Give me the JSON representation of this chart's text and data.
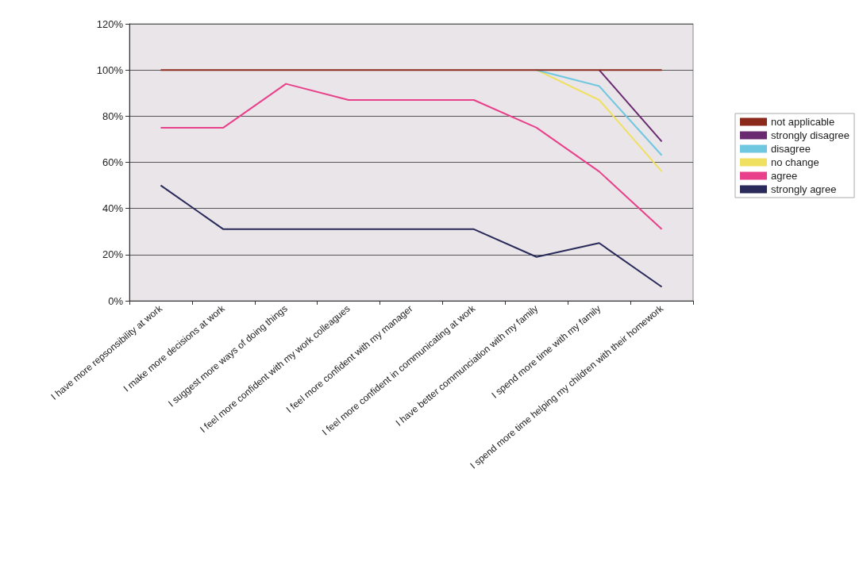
{
  "chart_data": {
    "type": "line",
    "categories": [
      "I have more repsonsibility at work",
      "I make more decisions at work",
      "I suggest more ways of doing things",
      "I feel more confident with my work colleagues",
      "I feel more confident with my manager",
      "I feel more confident in communicating at work",
      "I have better communciation with my family",
      "I spend more time with my family",
      "I spend more time helping my children with their homework"
    ],
    "series": [
      {
        "name": "not applicable",
        "color": "#8b2a1a",
        "values": [
          100,
          100,
          100,
          100,
          100,
          100,
          100,
          100,
          100
        ]
      },
      {
        "name": "strongly disagree",
        "color": "#6a2a70",
        "values": [
          null,
          null,
          null,
          null,
          null,
          null,
          null,
          100,
          69
        ]
      },
      {
        "name": "disagree",
        "color": "#70c8e0",
        "values": [
          null,
          null,
          null,
          null,
          null,
          null,
          100,
          93,
          63
        ]
      },
      {
        "name": "no change",
        "color": "#f0e060",
        "values": [
          null,
          null,
          null,
          null,
          null,
          null,
          100,
          87,
          56
        ]
      },
      {
        "name": "agree",
        "color": "#e8408a",
        "values": [
          75,
          75,
          94,
          87,
          87,
          87,
          75,
          56,
          31
        ]
      },
      {
        "name": "strongly agree",
        "color": "#2a2a5a",
        "values": [
          50,
          31,
          31,
          31,
          31,
          31,
          19,
          25,
          6
        ]
      }
    ],
    "ylim": [
      0,
      120
    ],
    "yticks": [
      {
        "value": 0,
        "label": "0%"
      },
      {
        "value": 20,
        "label": "20%"
      },
      {
        "value": 40,
        "label": "40%"
      },
      {
        "value": 60,
        "label": "60%"
      },
      {
        "value": 80,
        "label": "80%"
      },
      {
        "value": 100,
        "label": "100%"
      },
      {
        "value": 120,
        "label": "120%"
      }
    ],
    "grid": "y",
    "legend": "right",
    "marker": "none",
    "line_style": "solid"
  }
}
